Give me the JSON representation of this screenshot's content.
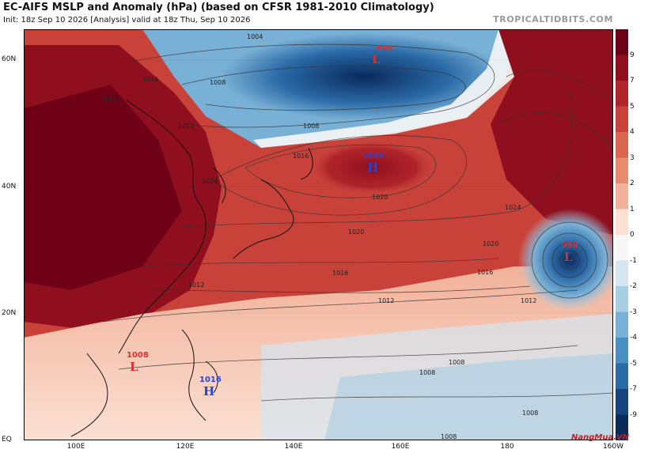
{
  "header": {
    "title": "EC-AIFS MSLP and Anomaly (hPa) (based on CFSR 1981-2010 Climatology)",
    "subtitle": "Init: 18z Sep 10 2026   [Analysis]   valid at 18z Thu, Sep 10 2026",
    "brand": "TROPICALTIDBITS.COM"
  },
  "axes": {
    "lat_labels": [
      "60N",
      "40N",
      "20N",
      "EQ"
    ],
    "lon_labels": [
      "100E",
      "120E",
      "140E",
      "160E",
      "180",
      "160W"
    ]
  },
  "colorbar": {
    "labels": [
      "9",
      "7",
      "5",
      "4",
      "3",
      "2",
      "1",
      "0",
      "-1",
      "-2",
      "-3",
      "-4",
      "-5",
      "-7",
      "-9"
    ],
    "colors": [
      "#6b0016",
      "#8f0f1e",
      "#b0242a",
      "#c8423a",
      "#d9674f",
      "#e88a6d",
      "#f2b199",
      "#fbe0d3",
      "#f7f7f7",
      "#d6e6f1",
      "#a9cde3",
      "#79b0d5",
      "#4a8fc2",
      "#2a6aa7",
      "#14457f",
      "#0a2a5c"
    ]
  },
  "pressure_centers": [
    {
      "type": "L",
      "value": "990",
      "color": "#d63030"
    },
    {
      "type": "H",
      "value": "1028",
      "color": "#2a45c9"
    },
    {
      "type": "L",
      "value": "999",
      "color": "#d63030"
    },
    {
      "type": "L",
      "value": "1008",
      "color": "#d63030"
    },
    {
      "type": "H",
      "value": "1016",
      "color": "#2a45c9"
    }
  ],
  "isobar_labels": [
    "1004",
    "1008",
    "1016",
    "1020",
    "1024",
    "1012",
    "1008",
    "1016",
    "1020",
    "1024",
    "1020",
    "1016",
    "1012",
    "1008",
    "1008",
    "1012",
    "1016",
    "1020",
    "1012",
    "1008",
    "1008"
  ],
  "watermark": "NangMua.VN"
}
